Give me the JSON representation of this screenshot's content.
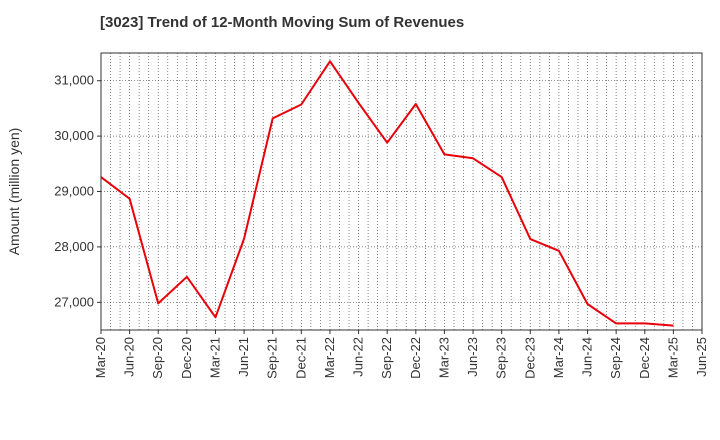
{
  "title": "[3023]  Trend of 12-Month Moving Sum of Revenues",
  "chart_data": {
    "type": "line",
    "title": "[3023]  Trend of 12-Month Moving Sum of Revenues",
    "xlabel": "",
    "ylabel": "Amount (million yen)",
    "x_ticks": [
      "Mar-20",
      "Jun-20",
      "Sep-20",
      "Dec-20",
      "Mar-21",
      "Jun-21",
      "Sep-21",
      "Dec-21",
      "Mar-22",
      "Jun-22",
      "Sep-22",
      "Dec-22",
      "Mar-23",
      "Jun-23",
      "Sep-23",
      "Dec-23",
      "Mar-24",
      "Jun-24",
      "Sep-24",
      "Dec-24",
      "Mar-25",
      "Jun-25"
    ],
    "y_ticks": [
      27000,
      28000,
      29000,
      30000,
      31000
    ],
    "y_tick_labels": [
      "27,000",
      "28,000",
      "29,000",
      "30,000",
      "31,000"
    ],
    "ylim": [
      26500,
      31500
    ],
    "grid": true,
    "minor_x_grid": "monthly",
    "series": [
      {
        "color": "#e8000b",
        "x": [
          "Mar-20",
          "Jun-20",
          "Sep-20",
          "Dec-20",
          "Mar-21",
          "Jun-21",
          "Sep-21",
          "Dec-21",
          "Mar-22",
          "Jun-22",
          "Sep-22",
          "Dec-22",
          "Mar-23",
          "Jun-23",
          "Sep-23",
          "Dec-23",
          "Mar-24",
          "Jun-24",
          "Sep-24",
          "Dec-24",
          "Mar-25"
        ],
        "values": [
          29260,
          28870,
          26980,
          27460,
          26730,
          28150,
          30320,
          30570,
          31350,
          30600,
          29880,
          30580,
          29670,
          29600,
          29260,
          28140,
          27930,
          26970,
          26620,
          26620,
          26580
        ]
      }
    ]
  }
}
